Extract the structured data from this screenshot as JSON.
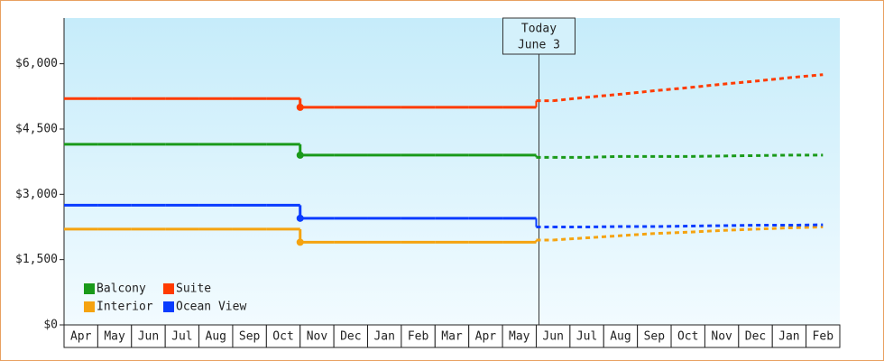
{
  "chart_data": {
    "type": "step",
    "categories": [
      "Apr",
      "May",
      "Jun",
      "Jul",
      "Aug",
      "Sep",
      "Oct",
      "Nov",
      "Dec",
      "Jan",
      "Feb",
      "Mar",
      "Apr",
      "May",
      "Jun",
      "Jul",
      "Aug",
      "Sep",
      "Oct",
      "Nov",
      "Dec",
      "Jan",
      "Feb"
    ],
    "series": [
      {
        "name": "Balcony",
        "color": "#1a9a1a",
        "values": [
          4150,
          4150,
          4150,
          4150,
          4150,
          4150,
          4150,
          3900,
          3900,
          3900,
          3900,
          3900,
          3900,
          3900,
          null,
          null,
          null,
          null,
          null,
          null,
          null,
          null,
          null
        ],
        "forecast": [
          null,
          null,
          null,
          null,
          null,
          null,
          null,
          null,
          null,
          null,
          null,
          null,
          null,
          null,
          3850,
          3850,
          3870,
          3870,
          3870,
          3880,
          3890,
          3900,
          3900
        ]
      },
      {
        "name": "Suite",
        "color": "#ff3b00",
        "values": [
          5200,
          5200,
          5200,
          5200,
          5200,
          5200,
          5200,
          5000,
          5000,
          5000,
          5000,
          5000,
          5000,
          5000,
          null,
          null,
          null,
          null,
          null,
          null,
          null,
          null,
          null
        ],
        "forecast": [
          null,
          null,
          null,
          null,
          null,
          null,
          null,
          null,
          null,
          null,
          null,
          null,
          null,
          null,
          5150,
          5230,
          5300,
          5380,
          5450,
          5530,
          5600,
          5680,
          5750
        ]
      },
      {
        "name": "Interior",
        "color": "#f5a310",
        "values": [
          2200,
          2200,
          2200,
          2200,
          2200,
          2200,
          2200,
          1900,
          1900,
          1900,
          1900,
          1900,
          1900,
          1900,
          null,
          null,
          null,
          null,
          null,
          null,
          null,
          null,
          null
        ],
        "forecast": [
          null,
          null,
          null,
          null,
          null,
          null,
          null,
          null,
          null,
          null,
          null,
          null,
          null,
          null,
          1950,
          2000,
          2050,
          2100,
          2130,
          2170,
          2200,
          2230,
          2250
        ]
      },
      {
        "name": "Ocean View",
        "color": "#0a3cff",
        "values": [
          2750,
          2750,
          2750,
          2750,
          2750,
          2750,
          2750,
          2450,
          2450,
          2450,
          2450,
          2450,
          2450,
          2450,
          null,
          null,
          null,
          null,
          null,
          null,
          null,
          null,
          null
        ],
        "forecast": [
          null,
          null,
          null,
          null,
          null,
          null,
          null,
          null,
          null,
          null,
          null,
          null,
          null,
          null,
          2250,
          2250,
          2260,
          2260,
          2270,
          2280,
          2290,
          2290,
          2300
        ]
      }
    ],
    "ylim": [
      0,
      7050
    ],
    "yticks": [
      {
        "value": 0,
        "label": "$0"
      },
      {
        "value": 1500,
        "label": "$1,500"
      },
      {
        "value": 3000,
        "label": "$3,000"
      },
      {
        "value": 4500,
        "label": "$4,500"
      },
      {
        "value": 6000,
        "label": "$6,000"
      }
    ],
    "annotation": {
      "lines": [
        "Today",
        "June 3"
      ]
    },
    "legend": "bottom-left"
  }
}
